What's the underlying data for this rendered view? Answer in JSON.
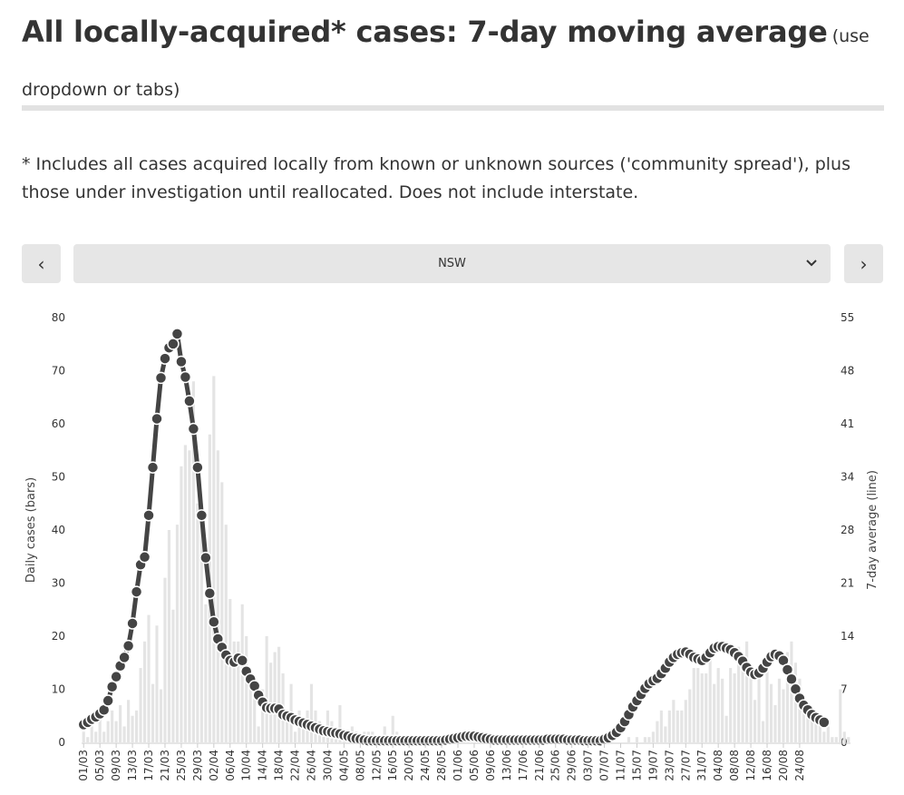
{
  "header": {
    "title": "All locally-acquired* cases: 7-day moving average",
    "subtitle": "(use dropdown or tabs)"
  },
  "note": "* Includes all cases acquired locally from known or unknown sources ('community spread'), plus those under investigation until reallocated. Does not include interstate.",
  "controls": {
    "prev_label": "‹",
    "next_label": "›",
    "selected_region": "NSW"
  },
  "colors": {
    "bar": "#e4e4e4",
    "line": "#444444",
    "marker_stroke": "#ffffff"
  },
  "chart_data": {
    "type": "bar+line",
    "title": "All locally-acquired* cases: 7-day moving average",
    "ylabel_left": "Daily cases (bars)",
    "ylabel_right": "7-day average (line)",
    "left_ticks": [
      0,
      10,
      20,
      30,
      40,
      50,
      60,
      70,
      80
    ],
    "left_ylim": [
      0,
      80
    ],
    "right_ticks": [
      0,
      7,
      14,
      21,
      28,
      34,
      41,
      48,
      55
    ],
    "right_ylim": [
      0,
      55
    ],
    "x_tick_labels": [
      "01/03",
      "05/03",
      "09/03",
      "13/03",
      "17/03",
      "21/03",
      "25/03",
      "29/03",
      "02/04",
      "06/04",
      "10/04",
      "14/04",
      "18/04",
      "22/04",
      "26/04",
      "30/04",
      "04/05",
      "08/05",
      "12/05",
      "16/05",
      "20/05",
      "24/05",
      "28/05",
      "01/06",
      "05/06",
      "09/06",
      "13/06",
      "17/06",
      "21/06",
      "25/06",
      "29/06",
      "03/07",
      "07/07",
      "11/07",
      "15/07",
      "19/07",
      "23/07",
      "27/07",
      "31/07",
      "04/08",
      "08/08",
      "12/08",
      "16/08",
      "20/08",
      "24/08"
    ],
    "series": [
      {
        "name": "Daily cases",
        "kind": "bar",
        "axis": "left",
        "values": [
          2,
          1,
          3,
          2,
          5,
          2,
          4,
          6,
          4,
          7,
          3,
          8,
          5,
          6,
          14,
          19,
          24,
          11,
          22,
          10,
          31,
          40,
          25,
          41,
          52,
          56,
          55,
          68,
          45,
          45,
          26,
          58,
          69,
          55,
          49,
          41,
          27,
          19,
          19,
          26,
          20,
          14,
          9,
          3,
          10,
          20,
          15,
          17,
          18,
          13,
          6,
          11,
          2,
          6,
          3,
          6,
          11,
          6,
          4,
          3,
          6,
          4,
          2,
          7,
          2,
          2,
          3,
          2,
          1,
          2,
          2,
          2,
          1,
          1,
          3,
          1,
          5,
          2,
          1,
          1,
          0,
          0,
          0,
          0,
          0,
          1,
          0,
          0,
          0,
          0,
          0,
          0,
          0,
          1,
          0,
          0,
          0,
          0,
          0,
          0,
          0,
          0,
          1,
          0,
          0,
          0,
          0,
          0,
          0,
          0,
          0,
          1,
          0,
          0,
          0,
          0,
          0,
          0,
          0,
          0,
          0,
          0,
          0,
          0,
          0,
          0,
          0,
          0,
          0,
          1,
          0,
          0,
          0,
          0,
          1,
          0,
          1,
          0,
          1,
          1,
          2,
          4,
          6,
          3,
          6,
          8,
          6,
          6,
          8,
          10,
          14,
          14,
          13,
          13,
          16,
          11,
          14,
          12,
          5,
          14,
          13,
          18,
          16,
          19,
          14,
          8,
          12,
          4,
          14,
          11,
          7,
          12,
          10,
          17,
          19,
          15,
          12,
          7,
          5,
          6,
          5,
          4,
          2,
          3,
          1,
          1,
          10,
          2,
          1
        ]
      },
      {
        "name": "7-day average",
        "kind": "line",
        "axis": "right",
        "values": [
          2.3,
          2.6,
          3.0,
          3.3,
          3.7,
          4.2,
          5.4,
          7.2,
          8.5,
          9.9,
          11.0,
          12.5,
          15.4,
          19.5,
          23.0,
          24.0,
          29.4,
          35.6,
          41.9,
          47.2,
          49.7,
          51.1,
          51.6,
          52.9,
          49.3,
          47.3,
          44.2,
          40.6,
          35.6,
          29.4,
          23.9,
          19.3,
          15.6,
          13.4,
          12.3,
          11.3,
          10.6,
          10.4,
          10.9,
          10.6,
          9.2,
          8.2,
          7.3,
          6.1,
          5.2,
          4.5,
          4.4,
          4.4,
          4.3,
          3.6,
          3.4,
          3.2,
          2.9,
          2.7,
          2.5,
          2.3,
          2.1,
          1.9,
          1.7,
          1.5,
          1.4,
          1.3,
          1.2,
          1.1,
          0.9,
          0.8,
          0.6,
          0.5,
          0.4,
          0.3,
          0.2,
          0.2,
          0.2,
          0.2,
          0.2,
          0.2,
          0.2,
          0.2,
          0.2,
          0.2,
          0.2,
          0.2,
          0.2,
          0.2,
          0.2,
          0.2,
          0.2,
          0.2,
          0.2,
          0.3,
          0.4,
          0.5,
          0.6,
          0.7,
          0.8,
          0.8,
          0.8,
          0.7,
          0.6,
          0.5,
          0.4,
          0.3,
          0.3,
          0.3,
          0.3,
          0.3,
          0.3,
          0.3,
          0.3,
          0.3,
          0.3,
          0.3,
          0.3,
          0.3,
          0.4,
          0.4,
          0.4,
          0.4,
          0.4,
          0.3,
          0.3,
          0.3,
          0.3,
          0.2,
          0.2,
          0.2,
          0.2,
          0.2,
          0.4,
          0.6,
          0.9,
          1.3,
          1.9,
          2.7,
          3.6,
          4.6,
          5.4,
          6.2,
          7.0,
          7.6,
          8.0,
          8.3,
          8.9,
          9.6,
          10.4,
          11.0,
          11.4,
          11.6,
          11.7,
          11.4,
          11.0,
          10.8,
          10.6,
          11.0,
          11.6,
          12.2,
          12.4,
          12.4,
          12.2,
          12.0,
          11.6,
          11.1,
          10.5,
          9.7,
          9.1,
          8.8,
          9.0,
          9.6,
          10.4,
          11.1,
          11.4,
          11.2,
          10.6,
          9.4,
          8.2,
          6.9,
          5.7,
          4.8,
          4.2,
          3.6,
          3.2,
          2.9,
          2.6
        ]
      }
    ]
  }
}
